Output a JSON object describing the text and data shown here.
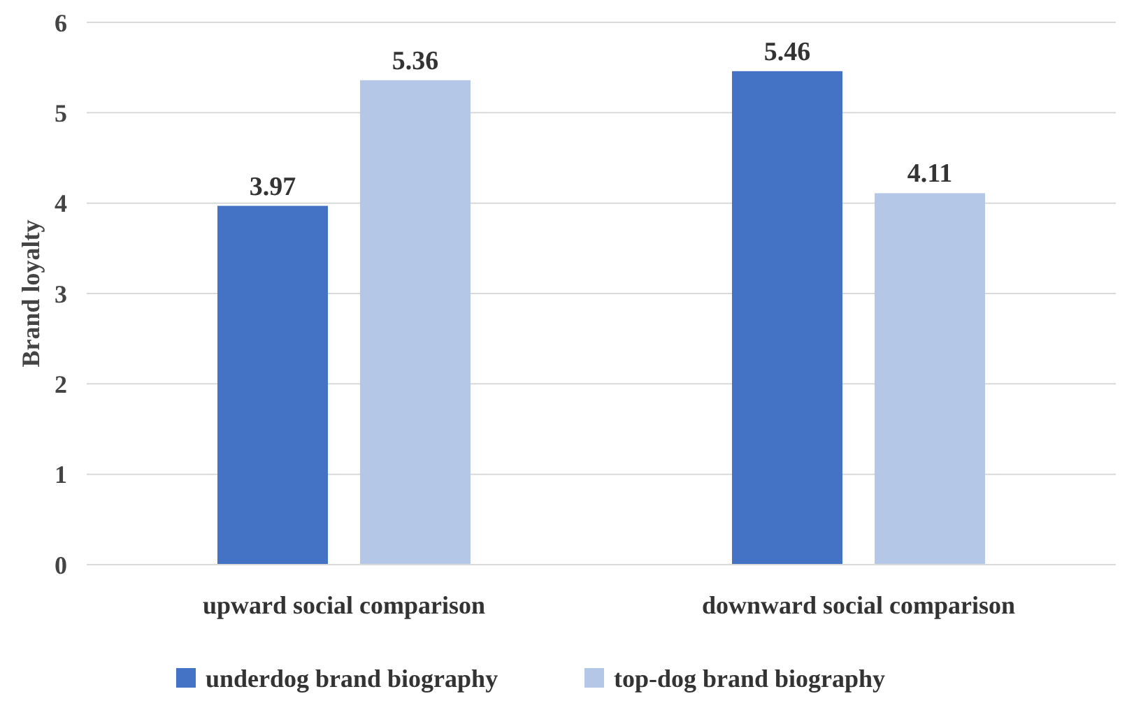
{
  "chart_data": {
    "type": "bar",
    "ylabel": "Brand loyalty",
    "categories": [
      "upward social comparison",
      "downward social comparison"
    ],
    "series": [
      {
        "name": "underdog brand biography",
        "color": "#4472c4",
        "values": [
          3.97,
          5.46
        ]
      },
      {
        "name": "top-dog brand biography",
        "color": "#b4c7e7",
        "values": [
          5.36,
          4.11
        ]
      }
    ],
    "ylim": [
      0,
      6
    ],
    "yticks": [
      0,
      1,
      2,
      3,
      4,
      5,
      6
    ],
    "grid": "y",
    "legend": "bottom",
    "data_labels": true
  }
}
